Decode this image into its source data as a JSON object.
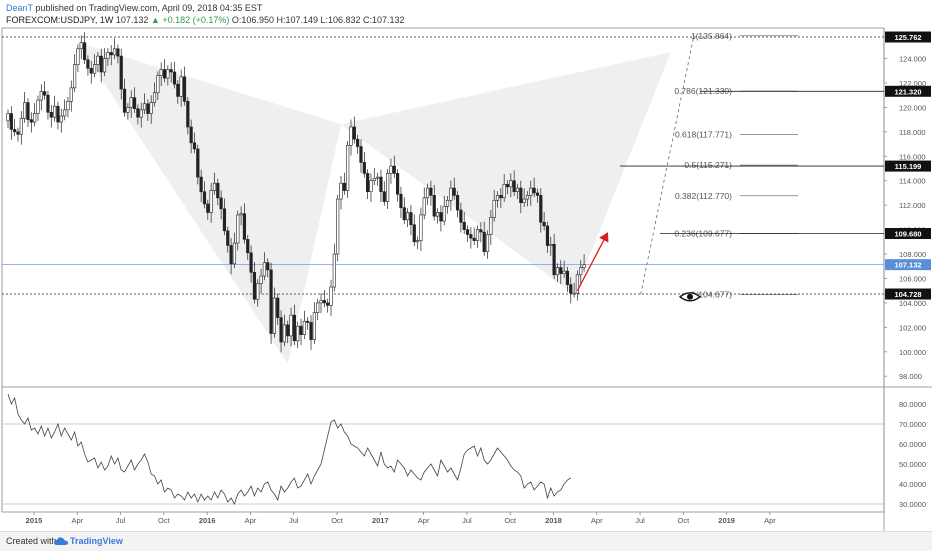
{
  "header": {
    "author": "DeanT",
    "published": "published on TradingView.com, April 09, 2018 04:35 EST",
    "symbol": "FOREXCOM:USDJPY, 1W",
    "last": "107.132",
    "change": "▲ +0.182 (+0.17%)",
    "ohlc": "O:106.950 H:107.149 L:106.832 C:107.132"
  },
  "footer": {
    "created_with": "Created with",
    "brand": "TradingView"
  },
  "colors": {
    "up": "#26a69a",
    "down": "#e53935",
    "candle_up": "#ffffff",
    "candle_down": "#222222",
    "pattern": "#ececec",
    "arrow": "#d81e1e",
    "price_line": "#5a8fd8"
  },
  "chart_data": [
    {
      "type": "candlestick",
      "title": "",
      "x_tick_labels": [
        "2015",
        "Apr",
        "Jul",
        "Oct",
        "2016",
        "Apr",
        "Jul",
        "Oct",
        "2017",
        "Apr",
        "Jul",
        "Oct",
        "2018",
        "Apr",
        "Jul",
        "Oct",
        "2019",
        "Apr"
      ],
      "y_tick_labels": [
        "98.000",
        "100.000",
        "102.000",
        "104.000",
        "106.000",
        "108.000",
        "110.000",
        "112.000",
        "114.000",
        "116.000",
        "118.000",
        "120.000",
        "122.000",
        "124.000"
      ],
      "ylim": [
        97.2,
        126.5
      ],
      "grid": false,
      "note_weeks": "x values are week index from Jan 2015",
      "weekly_close": [
        119.5,
        118.2,
        118.0,
        117.8,
        119.1,
        120.4,
        119.0,
        118.8,
        119.5,
        120.6,
        121.3,
        121.0,
        119.6,
        119.2,
        120.1,
        118.8,
        119.3,
        119.8,
        120.5,
        121.6,
        123.5,
        124.8,
        125.3,
        123.9,
        123.2,
        122.8,
        123.5,
        124.2,
        122.9,
        124.0,
        124.5,
        124.3,
        124.8,
        124.2,
        121.5,
        119.6,
        120.0,
        120.8,
        119.9,
        119.2,
        119.8,
        120.3,
        119.5,
        120.4,
        121.2,
        122.6,
        123.1,
        122.4,
        123.1,
        122.9,
        121.9,
        120.9,
        122.5,
        120.5,
        118.4,
        117.1,
        116.6,
        114.3,
        113.1,
        112.1,
        111.4,
        113.2,
        113.8,
        112.6,
        111.7,
        109.9,
        108.7,
        107.2,
        108.9,
        111.2,
        111.3,
        109.2,
        108.1,
        106.5,
        104.3,
        105.6,
        106.2,
        107.3,
        106.7,
        101.5,
        104.4,
        102.8,
        100.8,
        102.2,
        101.3,
        103.0,
        100.9,
        102.1,
        101.4,
        102.5,
        102.4,
        101.0,
        103.2,
        104.0,
        104.2,
        104.0,
        103.8,
        105.3,
        108.0,
        112.5,
        113.8,
        113.2,
        116.9,
        118.4,
        117.4,
        116.8,
        115.5,
        114.6,
        113.1,
        114.0,
        114.2,
        114.3,
        113.1,
        112.3,
        114.6,
        115.2,
        114.6,
        112.9,
        111.8,
        110.8,
        111.4,
        110.4,
        109.0,
        109.1,
        111.2,
        112.6,
        113.4,
        112.8,
        111.1,
        111.4,
        110.7,
        111.9,
        112.4,
        113.4,
        112.8,
        111.6,
        110.6,
        110.0,
        109.6,
        109.3,
        109.1,
        110.0,
        109.8,
        108.2,
        109.6,
        111.0,
        112.4,
        112.8,
        112.6,
        113.7,
        113.5,
        114.0,
        113.1,
        113.4,
        112.2,
        112.5,
        112.8,
        113.4,
        113.0,
        112.8,
        110.6,
        110.3,
        108.7,
        108.8,
        106.3,
        106.9,
        106.4,
        106.6,
        105.5,
        104.8,
        104.8,
        106.3,
        106.9,
        107.13
      ],
      "fibonacci_levels": [
        {
          "label": "1(125.864)",
          "value": 125.864
        },
        {
          "label": "0.786(121.330)",
          "value": 121.33
        },
        {
          "label": "0.618(117.771)",
          "value": 117.771
        },
        {
          "label": "0.5(115.271)",
          "value": 115.271
        },
        {
          "label": "0.382(112.770)",
          "value": 112.77
        },
        {
          "label": "0.236(109.677)",
          "value": 109.677
        },
        {
          "label": "0(104.677)",
          "value": 104.677
        }
      ],
      "price_labels": [
        {
          "label": "125.762",
          "value": 125.762
        },
        {
          "label": "121.320",
          "value": 121.32
        },
        {
          "label": "115.199",
          "value": 115.199
        },
        {
          "label": "109.680",
          "value": 109.68
        },
        {
          "label": "107.132",
          "value": 107.132
        },
        {
          "label": "104.728",
          "value": 104.728
        }
      ],
      "pattern_points": [
        {
          "week": 21,
          "value": 125.3
        },
        {
          "week": 84,
          "value": 99.0
        },
        {
          "week": 100,
          "value": 118.6
        },
        {
          "week": 170,
          "value": 104.7
        },
        {
          "week": 199,
          "value": 124.5
        }
      ],
      "projection_arrow": {
        "from_week": 171,
        "from": 105.0,
        "to_week": 180,
        "to": 109.7
      },
      "projection_dashed": {
        "from_week": 190,
        "from": 104.7,
        "to_week": 206,
        "to": 125.9
      }
    },
    {
      "type": "line",
      "title": "",
      "name": "",
      "y_tick_labels": [
        "30.0000",
        "40.0000",
        "50.0000",
        "60.0000",
        "70.0000",
        "80.0000"
      ],
      "ylim": [
        26,
        88
      ],
      "reference_lines": [
        70,
        30
      ],
      "values": [
        85,
        80,
        83,
        75,
        72,
        70,
        73,
        67,
        68,
        65,
        69,
        64,
        68,
        63,
        66,
        70,
        64,
        68,
        65,
        62,
        66,
        59,
        61,
        55,
        51,
        52,
        53,
        48,
        51,
        47,
        49,
        54,
        50,
        53,
        47,
        46,
        49,
        52,
        47,
        50,
        52,
        55,
        51,
        45,
        44,
        40,
        42,
        36,
        38,
        37,
        33,
        35,
        34,
        32,
        36,
        33,
        35,
        31,
        35,
        32,
        34,
        32,
        36,
        33,
        37,
        35,
        31,
        33,
        30,
        35,
        37,
        34,
        36,
        39,
        34,
        38,
        36,
        40,
        41,
        37,
        35,
        32,
        39,
        36,
        38,
        41,
        43,
        38,
        39,
        42,
        45,
        40,
        44,
        47,
        50,
        57,
        64,
        71,
        72,
        68,
        70,
        66,
        64,
        60,
        59,
        58,
        56,
        54,
        58,
        55,
        52,
        49,
        56,
        50,
        48,
        49,
        46,
        52,
        50,
        48,
        44,
        47,
        45,
        43,
        42,
        46,
        48,
        50,
        47,
        44,
        52,
        49,
        46,
        48,
        45,
        42,
        48,
        55,
        57,
        58,
        59,
        54,
        58,
        52,
        50,
        52,
        55,
        58,
        56,
        54,
        52,
        49,
        47,
        46,
        44,
        38,
        40,
        41,
        37,
        39,
        41,
        40,
        33,
        38,
        34,
        36,
        37,
        40,
        42,
        43
      ]
    }
  ]
}
